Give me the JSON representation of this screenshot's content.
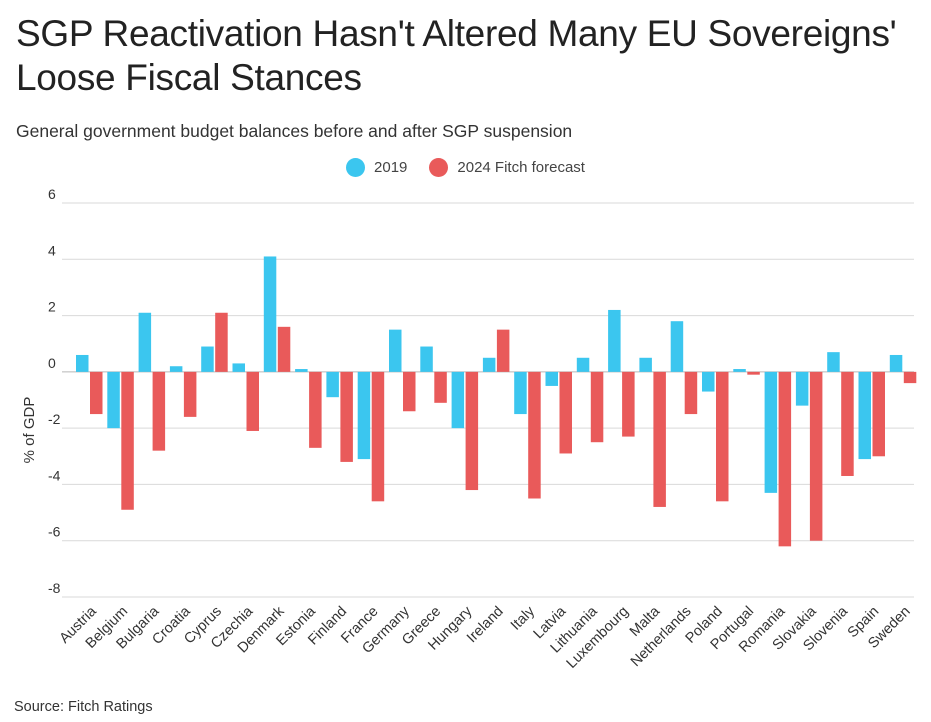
{
  "title": "SGP Reactivation Hasn't Altered Many EU Sovereigns' Loose Fiscal Stances",
  "subtitle": "General government budget balances before and after SGP suspension",
  "source": "Source: Fitch Ratings",
  "colors": {
    "series_2019": "#3bc6ef",
    "series_2024": "#e95a5a",
    "grid": "#d9d9d9",
    "zero_line": "#b8b8b8"
  },
  "chart_data": {
    "type": "bar",
    "title": "SGP Reactivation Hasn't Altered Many EU Sovereigns' Loose Fiscal Stances",
    "xlabel": "",
    "ylabel": "% of GDP",
    "ylim": [
      -8,
      6
    ],
    "yticks": [
      6,
      4,
      2,
      0,
      -2,
      -4,
      -6,
      -8
    ],
    "ytick_labels": [
      "6",
      "4",
      "2",
      "0",
      "-2",
      "-4",
      "-6",
      "-8"
    ],
    "grid": true,
    "legend_position": "top-center",
    "categories": [
      "Austria",
      "Belgium",
      "Bulgaria",
      "Croatia",
      "Cyprus",
      "Czechia",
      "Denmark",
      "Estonia",
      "Finland",
      "France",
      "Germany",
      "Greece",
      "Hungary",
      "Ireland",
      "Italy",
      "Latvia",
      "Lithuania",
      "Luxembourg",
      "Malta",
      "Netherlands",
      "Poland",
      "Portugal",
      "Romania",
      "Slovakia",
      "Slovenia",
      "Spain",
      "Sweden"
    ],
    "series": [
      {
        "name": "2019",
        "color": "#3bc6ef",
        "values": [
          0.6,
          -2.0,
          2.1,
          0.2,
          0.9,
          0.3,
          4.1,
          0.1,
          -0.9,
          -3.1,
          1.5,
          0.9,
          -2.0,
          0.5,
          -1.5,
          -0.5,
          0.5,
          2.2,
          0.5,
          1.8,
          -0.7,
          0.1,
          -4.3,
          -1.2,
          0.7,
          -3.1,
          0.6
        ]
      },
      {
        "name": "2024 Fitch forecast",
        "color": "#e95a5a",
        "values": [
          -1.5,
          -4.9,
          -2.8,
          -1.6,
          2.1,
          -2.1,
          1.6,
          -2.7,
          -3.2,
          -4.6,
          -1.4,
          -1.1,
          -4.2,
          1.5,
          -4.5,
          -2.9,
          -2.5,
          -2.3,
          -4.8,
          -1.5,
          -4.6,
          -0.1,
          -6.2,
          -6.0,
          -3.7,
          -3.0,
          -0.4
        ]
      }
    ]
  }
}
